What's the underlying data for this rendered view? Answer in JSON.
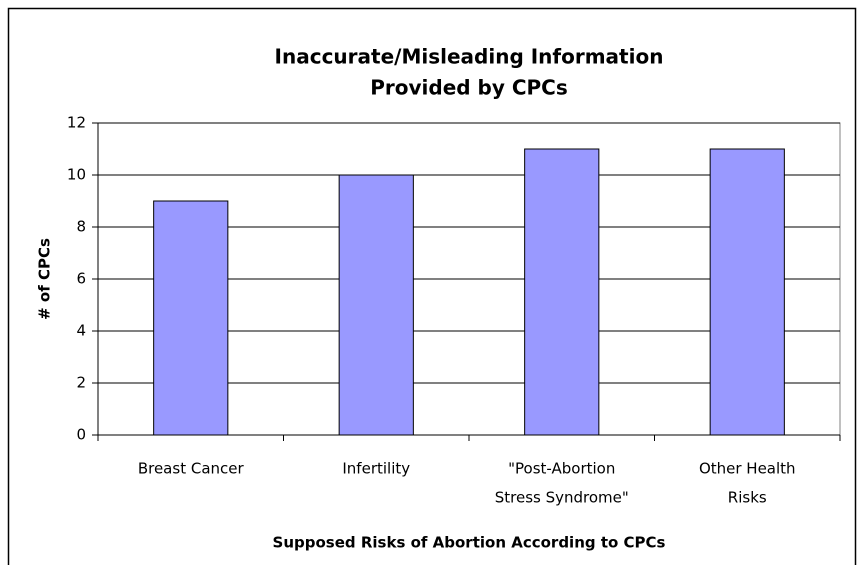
{
  "chart_data": {
    "type": "bar",
    "title": [
      "Inaccurate/Misleading Information",
      "Provided by CPCs"
    ],
    "x_label": "Supposed Risks of Abortion According to CPCs",
    "y_label": "# of CPCs",
    "categories": [
      [
        "Breast Cancer"
      ],
      [
        "Infertility"
      ],
      [
        "\"Post-Abortion",
        "Stress Syndrome\""
      ],
      [
        "Other Health",
        "Risks"
      ]
    ],
    "values": [
      9,
      10,
      11,
      11
    ],
    "color": "#9999ff",
    "ylim": [
      0,
      12
    ],
    "yticks": [
      0,
      2,
      4,
      6,
      8,
      10,
      12
    ],
    "grid": true
  }
}
